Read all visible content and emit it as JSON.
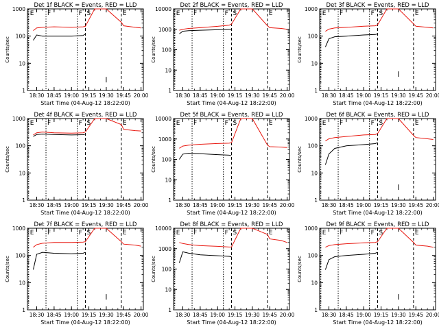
{
  "colors": {
    "events": "#000000",
    "lld": "#e8170f",
    "axis": "#000000",
    "background": "#ffffff"
  },
  "chart_data": [
    {
      "type": "line",
      "title": "Det 1f BLACK = Events, RED = LLD",
      "xlabel": "Start Time (04-Aug-12 18:22:00)",
      "ylabel": "Counts/sec",
      "x_tick_labels": [
        "18:30",
        "18:45",
        "19:00",
        "19:15",
        "19:30",
        "19:45",
        "20:00"
      ],
      "y_tick_labels": [
        "1",
        "10",
        "100",
        "1000"
      ],
      "yscale": "log",
      "ylim": [
        1,
        1000
      ],
      "xlim": [
        "18:22",
        "20:02"
      ],
      "markers": [
        {
          "label": "E",
          "time": "18:23"
        },
        {
          "label": "F",
          "time": "18:38"
        },
        {
          "label": "F",
          "time": "19:05"
        },
        {
          "label": "S",
          "time": "19:12"
        },
        {
          "label": "E",
          "time": "19:43"
        }
      ],
      "x": [
        "18:27",
        "18:30",
        "18:35",
        "18:45",
        "19:00",
        "19:10",
        "19:12",
        "19:20",
        "19:30",
        "19:43",
        "19:45",
        "19:55",
        "20:00"
      ],
      "series": [
        {
          "name": "Events",
          "values": [
            70,
            110,
            100,
            100,
            100,
            105,
            120,
            null,
            2.5,
            null,
            null,
            null,
            null
          ]
        },
        {
          "name": "LLD",
          "values": [
            160,
            200,
            210,
            220,
            210,
            220,
            230,
            1000,
            1000,
            320,
            240,
            210,
            200
          ]
        }
      ]
    },
    {
      "type": "line",
      "title": "Det 2f BLACK = Events, RED = LLD",
      "xlabel": "Start Time (04-Aug-12 18:22:00)",
      "ylabel": "Counts/sec",
      "x_tick_labels": [
        "18:30",
        "18:45",
        "19:00",
        "19:15",
        "19:30",
        "19:45",
        "20:00"
      ],
      "y_tick_labels": [
        "1",
        "10",
        "100",
        "1000",
        "10000"
      ],
      "yscale": "log",
      "ylim": [
        1,
        10000
      ],
      "xlim": [
        "18:22",
        "20:02"
      ],
      "markers": [
        {
          "label": "E",
          "time": "18:23"
        },
        {
          "label": "F",
          "time": "18:38"
        },
        {
          "label": "F",
          "time": "19:05"
        },
        {
          "label": "S",
          "time": "19:12"
        },
        {
          "label": "E",
          "time": "19:43"
        }
      ],
      "x": [
        "18:27",
        "18:30",
        "18:35",
        "18:45",
        "19:00",
        "19:10",
        "19:12",
        "19:20",
        "19:30",
        "19:43",
        "19:45",
        "19:55",
        "20:00"
      ],
      "series": [
        {
          "name": "Events",
          "values": [
            600,
            800,
            850,
            900,
            950,
            1000,
            1000,
            null,
            null,
            null,
            null,
            null,
            null
          ]
        },
        {
          "name": "LLD",
          "values": [
            900,
            1000,
            1100,
            1200,
            1400,
            1600,
            1800,
            10000,
            10000,
            1500,
            1200,
            1100,
            1000
          ]
        }
      ]
    },
    {
      "type": "line",
      "title": "Det 3f BLACK = Events, RED = LLD",
      "xlabel": "Start Time (04-Aug-12 18:22:00)",
      "ylabel": "Counts/sec",
      "x_tick_labels": [
        "18:30",
        "18:45",
        "19:00",
        "19:15",
        "19:30",
        "19:45",
        "20:00"
      ],
      "y_tick_labels": [
        "1",
        "10",
        "100",
        "1000"
      ],
      "yscale": "log",
      "ylim": [
        1,
        1000
      ],
      "xlim": [
        "18:22",
        "20:02"
      ],
      "markers": [
        {
          "label": "E",
          "time": "18:23"
        },
        {
          "label": "F",
          "time": "18:38"
        },
        {
          "label": "F",
          "time": "19:05"
        },
        {
          "label": "S",
          "time": "19:12"
        },
        {
          "label": "E",
          "time": "19:43"
        }
      ],
      "x": [
        "18:27",
        "18:30",
        "18:35",
        "18:45",
        "19:00",
        "19:10",
        "19:12",
        "19:20",
        "19:30",
        "19:43",
        "19:45",
        "19:55",
        "20:00"
      ],
      "series": [
        {
          "name": "Events",
          "values": [
            40,
            80,
            95,
            100,
            110,
            115,
            120,
            null,
            4,
            null,
            null,
            null,
            null
          ]
        },
        {
          "name": "LLD",
          "values": [
            150,
            180,
            200,
            210,
            230,
            240,
            260,
            1000,
            1000,
            280,
            230,
            210,
            200
          ]
        }
      ]
    },
    {
      "type": "line",
      "title": "Det 4f BLACK = Events, RED = LLD",
      "xlabel": "Start Time (04-Aug-12 18:22:00)",
      "ylabel": "Counts/sec",
      "x_tick_labels": [
        "18:30",
        "18:45",
        "19:00",
        "19:15",
        "19:30",
        "19:45",
        "20:00"
      ],
      "y_tick_labels": [
        "1",
        "10",
        "100",
        "1000"
      ],
      "yscale": "log",
      "ylim": [
        1,
        1000
      ],
      "xlim": [
        "18:22",
        "20:02"
      ],
      "markers": [
        {
          "label": "E",
          "time": "18:23"
        },
        {
          "label": "F",
          "time": "18:38"
        },
        {
          "label": "F",
          "time": "19:05"
        },
        {
          "label": "S",
          "time": "19:12"
        },
        {
          "label": "E",
          "time": "19:43"
        }
      ],
      "x": [
        "18:27",
        "18:30",
        "18:35",
        "18:45",
        "19:00",
        "19:10",
        "19:12",
        "19:20",
        "19:30",
        "19:43",
        "19:45",
        "19:55",
        "20:00"
      ],
      "series": [
        {
          "name": "Events",
          "values": [
            220,
            260,
            270,
            260,
            250,
            255,
            270,
            null,
            null,
            null,
            null,
            null,
            null
          ]
        },
        {
          "name": "LLD",
          "values": [
            250,
            300,
            320,
            300,
            290,
            300,
            320,
            1000,
            1000,
            600,
            400,
            360,
            350
          ]
        }
      ]
    },
    {
      "type": "line",
      "title": "Det 5f BLACK = Events, RED = LLD",
      "xlabel": "Start Time (04-Aug-12 18:22:00)",
      "ylabel": "Counts/sec",
      "x_tick_labels": [
        "18:30",
        "18:45",
        "19:00",
        "19:15",
        "19:30",
        "19:45",
        "20:00"
      ],
      "y_tick_labels": [
        "1",
        "10",
        "100",
        "1000",
        "10000"
      ],
      "yscale": "log",
      "ylim": [
        1,
        10000
      ],
      "xlim": [
        "18:22",
        "20:02"
      ],
      "markers": [
        {
          "label": "E",
          "time": "18:23"
        },
        {
          "label": "F",
          "time": "18:38"
        },
        {
          "label": "F",
          "time": "19:05"
        },
        {
          "label": "S",
          "time": "19:12"
        },
        {
          "label": "E",
          "time": "19:43"
        }
      ],
      "x": [
        "18:27",
        "18:30",
        "18:35",
        "18:45",
        "19:00",
        "19:10",
        "19:12",
        "19:20",
        "19:30",
        "19:43",
        "19:45",
        "19:55",
        "20:00"
      ],
      "series": [
        {
          "name": "Events",
          "values": [
            100,
            180,
            200,
            190,
            170,
            160,
            150,
            null,
            null,
            null,
            null,
            null,
            null
          ]
        },
        {
          "name": "LLD",
          "values": [
            350,
            450,
            500,
            550,
            600,
            620,
            650,
            10000,
            10000,
            500,
            420,
            400,
            380
          ]
        }
      ]
    },
    {
      "type": "line",
      "title": "Det 6f BLACK = Events, RED = LLD",
      "xlabel": "Start Time (04-Aug-12 18:22:00)",
      "ylabel": "Counts/sec",
      "x_tick_labels": [
        "18:30",
        "18:45",
        "19:00",
        "19:15",
        "19:30",
        "19:45",
        "20:00"
      ],
      "y_tick_labels": [
        "1",
        "10",
        "100",
        "1000"
      ],
      "yscale": "log",
      "ylim": [
        1,
        1000
      ],
      "xlim": [
        "18:22",
        "20:02"
      ],
      "markers": [
        {
          "label": "E",
          "time": "18:23"
        },
        {
          "label": "F",
          "time": "18:38"
        },
        {
          "label": "F",
          "time": "19:05"
        },
        {
          "label": "S",
          "time": "19:12"
        },
        {
          "label": "E",
          "time": "19:43"
        }
      ],
      "x": [
        "18:27",
        "18:30",
        "18:35",
        "18:45",
        "19:00",
        "19:10",
        "19:12",
        "19:20",
        "19:30",
        "19:43",
        "19:45",
        "19:55",
        "20:00"
      ],
      "series": [
        {
          "name": "Events",
          "values": [
            20,
            50,
            80,
            100,
            110,
            120,
            130,
            null,
            3,
            null,
            null,
            null,
            null
          ]
        },
        {
          "name": "LLD",
          "values": [
            150,
            180,
            200,
            220,
            250,
            260,
            280,
            1000,
            1000,
            240,
            200,
            180,
            170
          ]
        }
      ]
    },
    {
      "type": "line",
      "title": "Det 7f BLACK = Events, RED = LLD",
      "xlabel": "Start Time (04-Aug-12 18:22:00)",
      "ylabel": "Counts/sec",
      "x_tick_labels": [
        "18:30",
        "18:45",
        "19:00",
        "19:15",
        "19:30",
        "19:45",
        "20:00"
      ],
      "y_tick_labels": [
        "1",
        "10",
        "100",
        "1000"
      ],
      "yscale": "log",
      "ylim": [
        1,
        1000
      ],
      "xlim": [
        "18:22",
        "20:02"
      ],
      "markers": [
        {
          "label": "E",
          "time": "18:23"
        },
        {
          "label": "F",
          "time": "18:38"
        },
        {
          "label": "F",
          "time": "19:05"
        },
        {
          "label": "S",
          "time": "19:12"
        },
        {
          "label": "E",
          "time": "19:43"
        }
      ],
      "x": [
        "18:27",
        "18:30",
        "18:35",
        "18:45",
        "19:00",
        "19:10",
        "19:12",
        "19:20",
        "19:30",
        "19:43",
        "19:45",
        "19:55",
        "20:00"
      ],
      "series": [
        {
          "name": "Events",
          "values": [
            30,
            110,
            130,
            120,
            115,
            120,
            130,
            null,
            3,
            null,
            null,
            null,
            null
          ]
        },
        {
          "name": "LLD",
          "values": [
            200,
            250,
            280,
            300,
            300,
            310,
            320,
            1000,
            1000,
            320,
            260,
            240,
            220
          ]
        }
      ]
    },
    {
      "type": "line",
      "title": "Det 8f BLACK = Events, RED = LLD",
      "xlabel": "Start Time (04-Aug-12 18:22:00)",
      "ylabel": "Counts/sec",
      "x_tick_labels": [
        "18:30",
        "18:45",
        "19:00",
        "19:15",
        "19:30",
        "19:45",
        "20:00"
      ],
      "y_tick_labels": [
        "1",
        "10",
        "100",
        "1000",
        "10000"
      ],
      "yscale": "log",
      "ylim": [
        1,
        10000
      ],
      "xlim": [
        "18:22",
        "20:02"
      ],
      "markers": [
        {
          "label": "E",
          "time": "18:23"
        },
        {
          "label": "F",
          "time": "18:38"
        },
        {
          "label": "F",
          "time": "19:05"
        },
        {
          "label": "S",
          "time": "19:12"
        },
        {
          "label": "E",
          "time": "19:43"
        }
      ],
      "x": [
        "18:27",
        "18:30",
        "18:35",
        "18:45",
        "19:00",
        "19:10",
        "19:12",
        "19:20",
        "19:30",
        "19:43",
        "19:45",
        "19:55",
        "20:00"
      ],
      "series": [
        {
          "name": "Events",
          "values": [
            200,
            700,
            600,
            500,
            450,
            420,
            400,
            null,
            null,
            null,
            null,
            null,
            null
          ]
        },
        {
          "name": "LLD",
          "values": [
            2000,
            1800,
            1600,
            1400,
            1300,
            1200,
            1200,
            10000,
            10000,
            5000,
            3000,
            2500,
            2000
          ]
        }
      ]
    },
    {
      "type": "line",
      "title": "Det 9f BLACK = Events, RED = LLD",
      "xlabel": "Start Time (04-Aug-12 18:22:00)",
      "ylabel": "Counts/sec",
      "x_tick_labels": [
        "18:30",
        "18:45",
        "19:00",
        "19:15",
        "19:30",
        "19:45",
        "20:00"
      ],
      "y_tick_labels": [
        "1",
        "10",
        "100",
        "1000"
      ],
      "yscale": "log",
      "ylim": [
        1,
        1000
      ],
      "xlim": [
        "18:22",
        "20:02"
      ],
      "markers": [
        {
          "label": "E",
          "time": "18:23"
        },
        {
          "label": "F",
          "time": "18:38"
        },
        {
          "label": "F",
          "time": "19:05"
        },
        {
          "label": "S",
          "time": "19:12"
        },
        {
          "label": "E",
          "time": "19:43"
        }
      ],
      "x": [
        "18:27",
        "18:30",
        "18:35",
        "18:45",
        "19:00",
        "19:10",
        "19:12",
        "19:20",
        "19:30",
        "19:43",
        "19:45",
        "19:55",
        "20:00"
      ],
      "series": [
        {
          "name": "Events",
          "values": [
            30,
            70,
            90,
            100,
            110,
            120,
            130,
            null,
            3,
            null,
            null,
            null,
            null
          ]
        },
        {
          "name": "LLD",
          "values": [
            200,
            230,
            250,
            270,
            290,
            300,
            320,
            1000,
            1000,
            300,
            240,
            220,
            200
          ]
        }
      ]
    }
  ]
}
